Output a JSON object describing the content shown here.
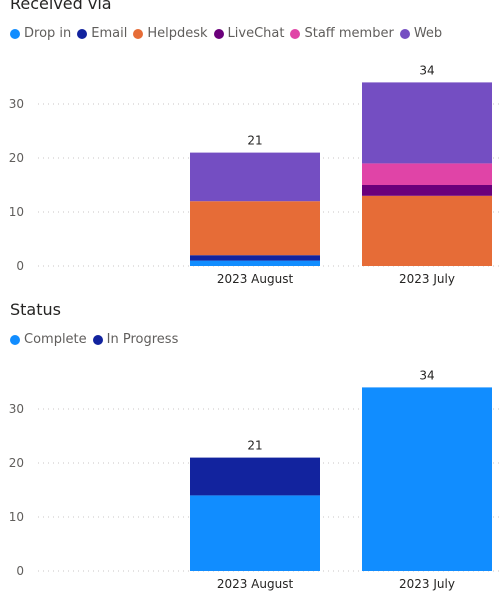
{
  "chart_data": [
    {
      "type": "bar",
      "stacked": true,
      "title": "Received via",
      "categories": [
        "2023 August",
        "2023 July"
      ],
      "series": [
        {
          "name": "Drop in",
          "color": "#118DFF",
          "values": [
            1,
            0
          ]
        },
        {
          "name": "Email",
          "color": "#12239E",
          "values": [
            1,
            0
          ]
        },
        {
          "name": "Helpdesk",
          "color": "#E66C37",
          "values": [
            10,
            13
          ]
        },
        {
          "name": "LiveChat",
          "color": "#6B007B",
          "values": [
            0,
            2
          ]
        },
        {
          "name": "Staff member",
          "color": "#E044A7",
          "values": [
            0,
            4
          ]
        },
        {
          "name": "Web",
          "color": "#744EC2",
          "values": [
            9,
            15
          ]
        }
      ],
      "totals": [
        "21",
        "34"
      ],
      "yticks": [
        "0",
        "10",
        "20",
        "30"
      ],
      "ylim": [
        0,
        35
      ],
      "grid": true,
      "legend": "top-left"
    },
    {
      "type": "bar",
      "stacked": true,
      "title": "Status",
      "categories": [
        "2023 August",
        "2023 July"
      ],
      "series": [
        {
          "name": "Complete",
          "color": "#118DFF",
          "values": [
            14,
            34
          ]
        },
        {
          "name": "In Progress",
          "color": "#12239E",
          "values": [
            7,
            0
          ]
        }
      ],
      "totals": [
        "21",
        "34"
      ],
      "yticks": [
        "0",
        "10",
        "20",
        "30"
      ],
      "ylim": [
        0,
        35
      ],
      "grid": true,
      "legend": "top-left"
    }
  ]
}
